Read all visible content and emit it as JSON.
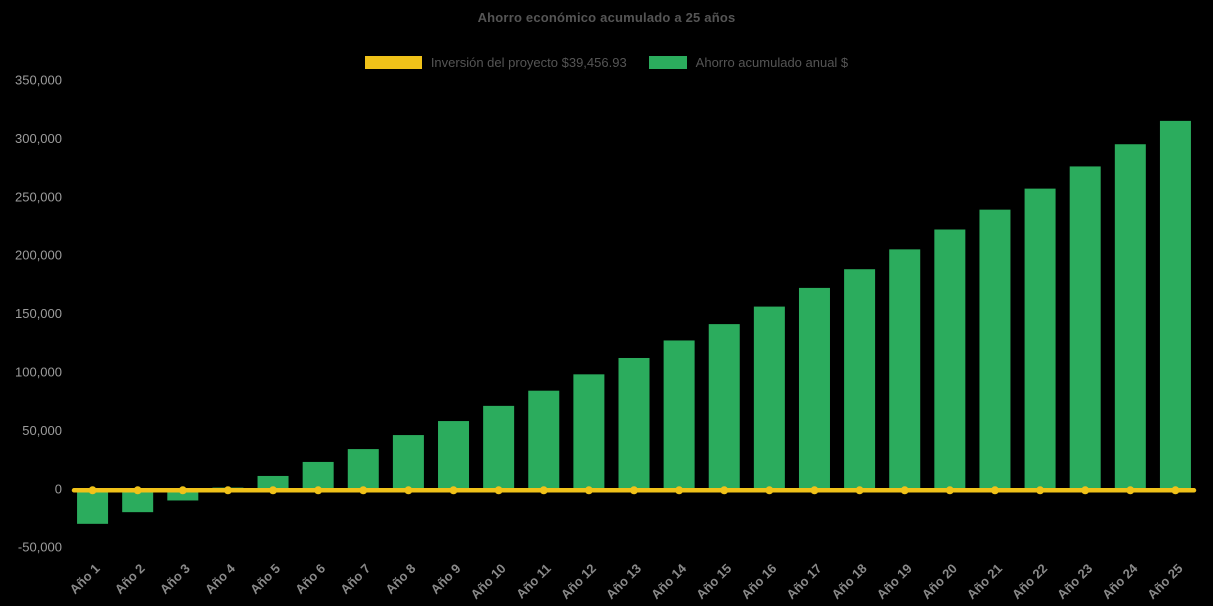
{
  "page": {
    "background": "#000000"
  },
  "chart_data": {
    "type": "bar",
    "title": "Ahorro económico acumulado a 25 años",
    "xlabel": "",
    "ylabel": "",
    "ylim": [
      -50000,
      350000
    ],
    "ytick_step": 50000,
    "grid": false,
    "legend_position": "top-center",
    "categories": [
      "Año 1",
      "Año 2",
      "Año 3",
      "Año 4",
      "Año 5",
      "Año 6",
      "Año 7",
      "Año 8",
      "Año 9",
      "Año 10",
      "Año 11",
      "Año 12",
      "Año 13",
      "Año 14",
      "Año 15",
      "Año 16",
      "Año 17",
      "Año 18",
      "Año 19",
      "Año 20",
      "Año 21",
      "Año 22",
      "Año 23",
      "Año 24",
      "Año 25"
    ],
    "series": [
      {
        "name": "Inversión del proyecto $39,456.93",
        "type": "line",
        "color": "#f0c219",
        "value": 0
      },
      {
        "name": "Ahorro acumulado anual $",
        "type": "bar",
        "color": "#2bac5d",
        "values": [
          -30000,
          -20000,
          -10000,
          1000,
          11000,
          23000,
          34000,
          46000,
          58000,
          71000,
          84000,
          98000,
          112000,
          127000,
          141000,
          156000,
          172000,
          188000,
          205000,
          222000,
          239000,
          257000,
          276000,
          295000,
          315000
        ]
      }
    ]
  }
}
